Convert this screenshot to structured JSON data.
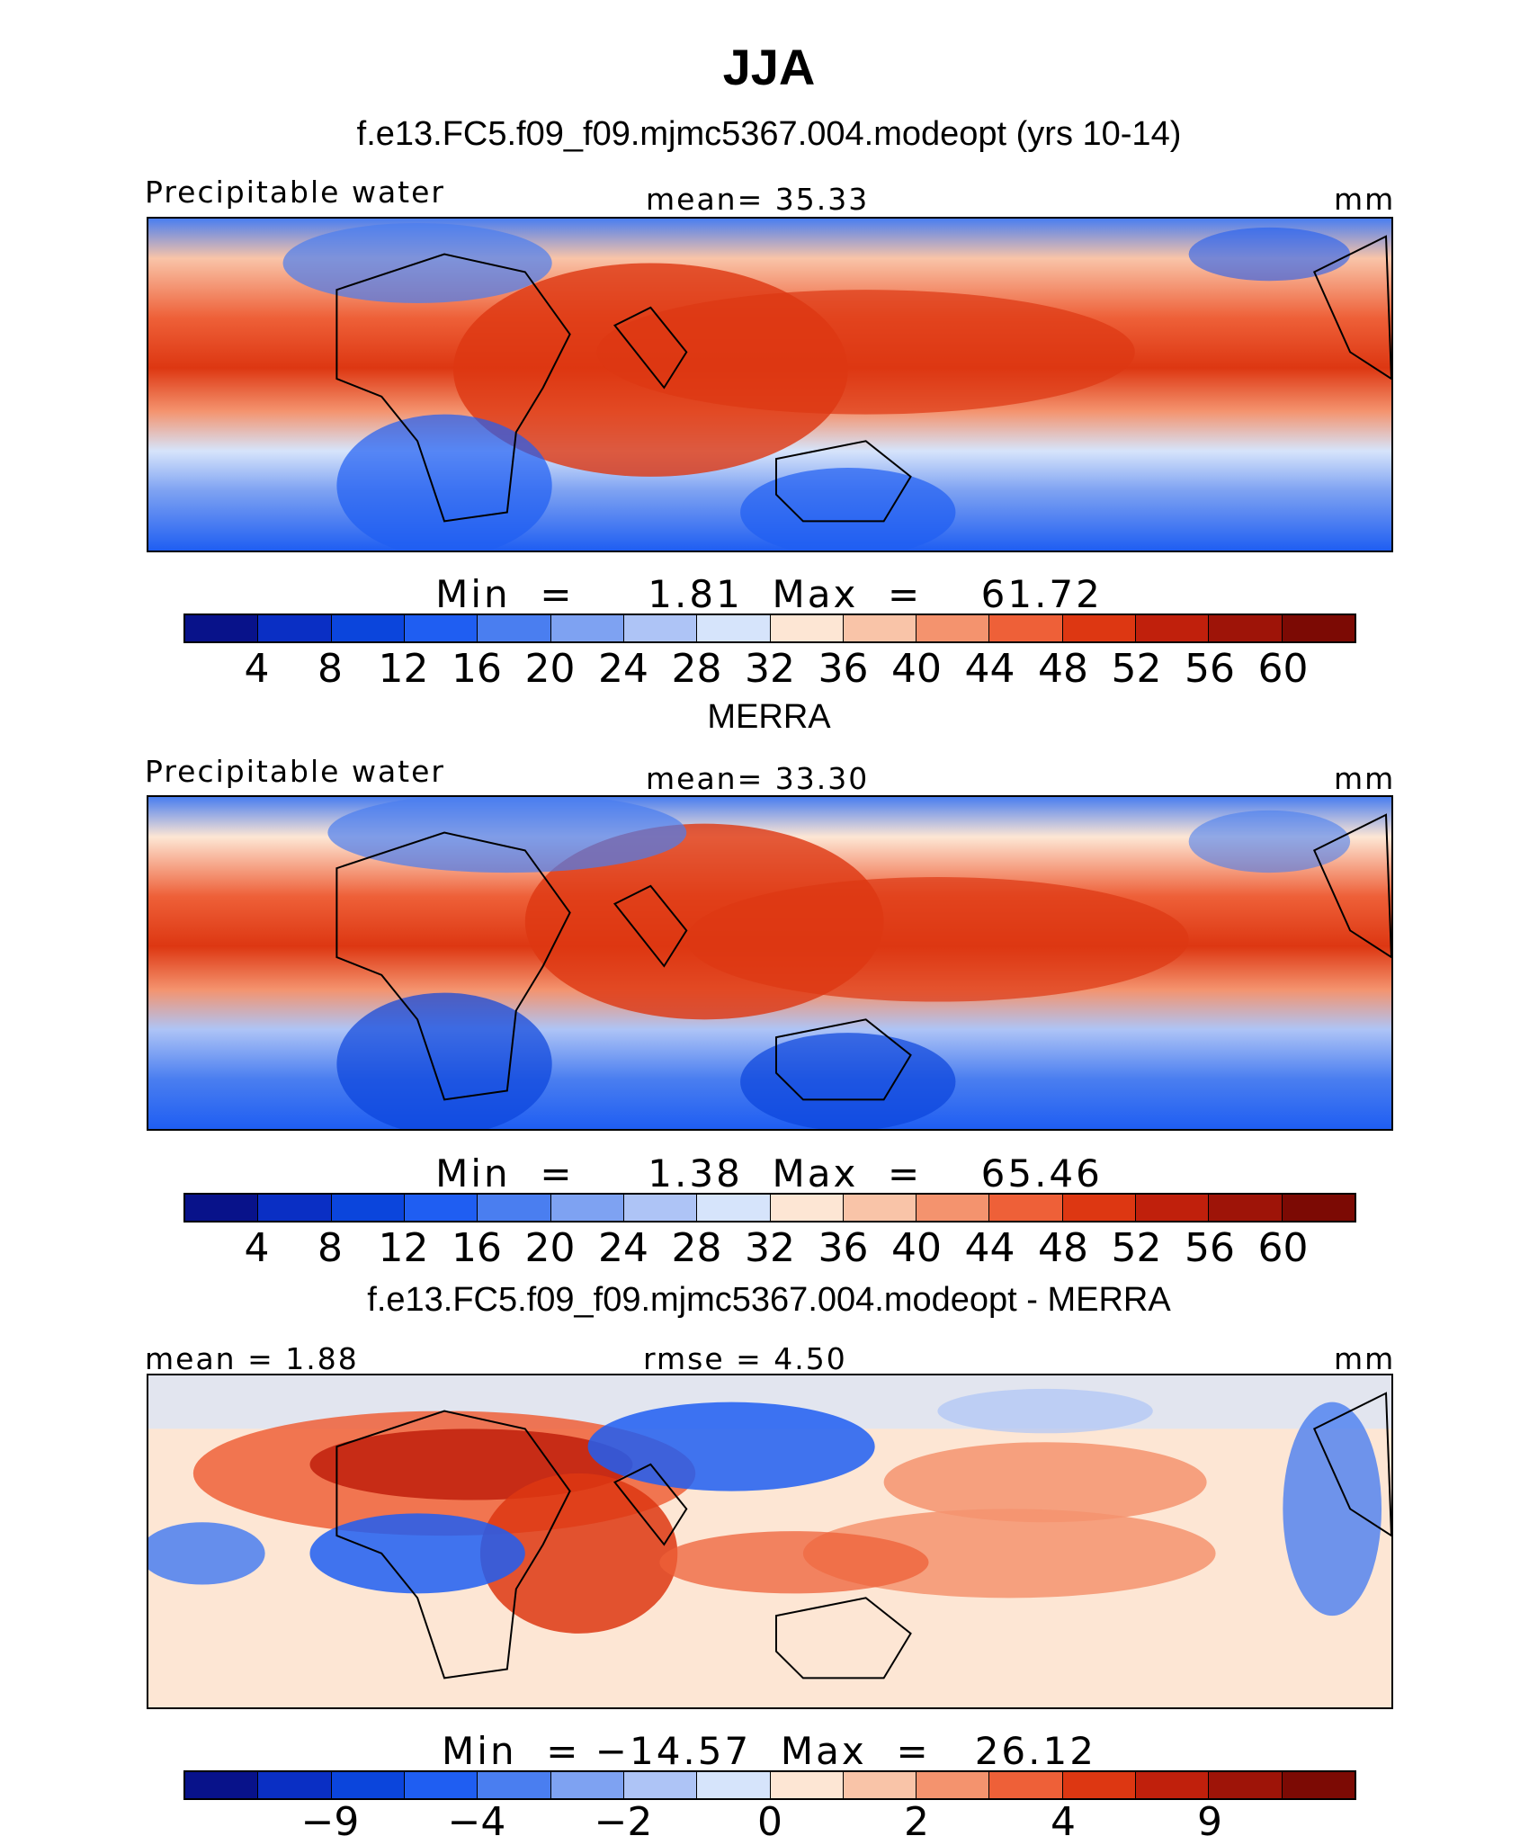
{
  "figure": {
    "title": "JJA",
    "colors": [
      "#08128a",
      "#0a2fc4",
      "#0b45dc",
      "#1f5ef2",
      "#4a7ef0",
      "#7ea2f2",
      "#aec4f6",
      "#d6e4fb",
      "#fde6d4",
      "#f9c4a8",
      "#f4936e",
      "#ee6038",
      "#dd3712",
      "#c0200c",
      "#9e1408",
      "#7c0a04"
    ],
    "panels": [
      {
        "header": "f.e13.FC5.f09_f09.mjmc5367.004.modeopt (yrs 10-14)",
        "left_label": "Precipitable water",
        "center_label": "mean=   35.33",
        "right_label": "mm",
        "minmax": "Min  =     1.81  Max  =    61.72",
        "ticks": [
          "4",
          "8",
          "12",
          "16",
          "20",
          "24",
          "28",
          "32",
          "36",
          "40",
          "44",
          "48",
          "52",
          "56",
          "60"
        ],
        "tick_slots": [
          1,
          2,
          3,
          4,
          5,
          6,
          7,
          8,
          9,
          10,
          11,
          12,
          13,
          14,
          15
        ]
      },
      {
        "header": "MERRA",
        "left_label": "Precipitable water",
        "center_label": "mean=   33.30",
        "right_label": "mm",
        "minmax": "Min  =     1.38  Max  =    65.46",
        "ticks": [
          "4",
          "8",
          "12",
          "16",
          "20",
          "24",
          "28",
          "32",
          "36",
          "40",
          "44",
          "48",
          "52",
          "56",
          "60"
        ],
        "tick_slots": [
          1,
          2,
          3,
          4,
          5,
          6,
          7,
          8,
          9,
          10,
          11,
          12,
          13,
          14,
          15
        ]
      },
      {
        "header": "f.e13.FC5.f09_f09.mjmc5367.004.modeopt - MERRA",
        "left_label": "mean  =    1.88",
        "center_label": "rmse  =    4.50",
        "right_label": "mm",
        "minmax": "Min  = −14.57  Max  =   26.12",
        "ticks": [
          "−9",
          "−4",
          "−2",
          "0",
          "2",
          "4",
          "9"
        ],
        "tick_slots": [
          2,
          4,
          6,
          8,
          10,
          12,
          14
        ]
      }
    ]
  }
}
